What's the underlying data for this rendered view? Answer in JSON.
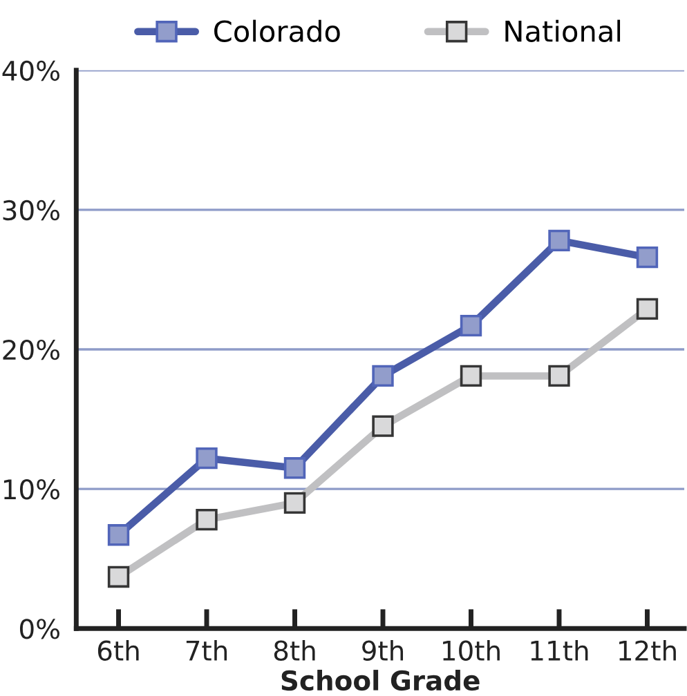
{
  "chart_data": {
    "type": "line",
    "xlabel": "School Grade",
    "categories": [
      "6th",
      "7th",
      "8th",
      "9th",
      "10th",
      "11th",
      "12th"
    ],
    "series": [
      {
        "name": "Colorado",
        "color": "#4a5ca8",
        "values": [
          6.7,
          12.2,
          11.5,
          18.1,
          21.7,
          27.8,
          26.6
        ]
      },
      {
        "name": "National",
        "color": "#c0c0c2",
        "values": [
          3.7,
          7.8,
          9.0,
          14.5,
          18.1,
          18.1,
          22.9
        ]
      }
    ],
    "ylim": [
      0,
      40
    ],
    "yticks": [
      {
        "value": 0,
        "label": "0%"
      },
      {
        "value": 10,
        "label": "10%"
      },
      {
        "value": 20,
        "label": "20%"
      },
      {
        "value": 30,
        "label": "30%"
      },
      {
        "value": 40,
        "label": "40%"
      }
    ],
    "grid": "y",
    "legend": "top",
    "marker": "square",
    "line_style": "solid"
  }
}
